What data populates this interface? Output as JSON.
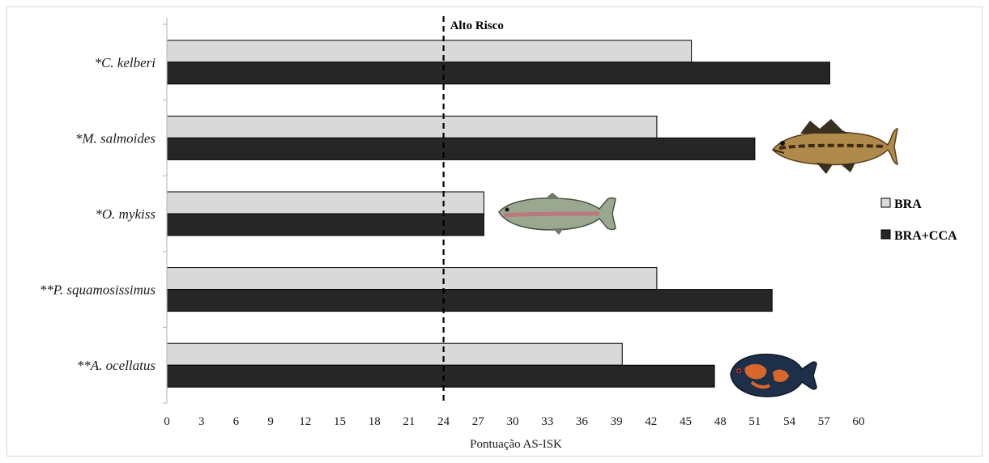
{
  "colors": {
    "bra": "#d9d9d9",
    "bra_cca": "#262626",
    "bar_stroke": "#000000",
    "axis": "#bfbfbf",
    "threshold": "#000000"
  },
  "chart_data": {
    "type": "bar",
    "orientation": "horizontal",
    "title": "",
    "xlabel": "Pontuação AS-ISK",
    "ylabel": "",
    "xlim": [
      0,
      60
    ],
    "x_ticks": [
      "0",
      "3",
      "6",
      "9",
      "12",
      "15",
      "18",
      "21",
      "24",
      "27",
      "30",
      "33",
      "36",
      "39",
      "42",
      "45",
      "48",
      "51",
      "54",
      "57",
      "60"
    ],
    "categories": [
      "*C. kelberi",
      "*M. salmoides",
      "*O. mykiss",
      "**P. squamosissimus",
      "**A. ocellatus"
    ],
    "series": [
      {
        "name": "BRA",
        "values": [
          45.5,
          42.5,
          27.5,
          42.5,
          39.5
        ]
      },
      {
        "name": "BRA+CCA",
        "values": [
          57.5,
          51.0,
          27.5,
          52.5,
          47.5
        ]
      }
    ],
    "threshold": {
      "label": "Alto Risco",
      "value": 24,
      "style": "dashed"
    },
    "legend_position": "right",
    "grid": false,
    "illustrations": [
      {
        "name": "largemouth-bass-icon",
        "near_category": "*M. salmoides"
      },
      {
        "name": "rainbow-trout-icon",
        "near_category": "*O. mykiss"
      },
      {
        "name": "oscar-fish-icon",
        "near_category": "**A. ocellatus"
      }
    ]
  }
}
